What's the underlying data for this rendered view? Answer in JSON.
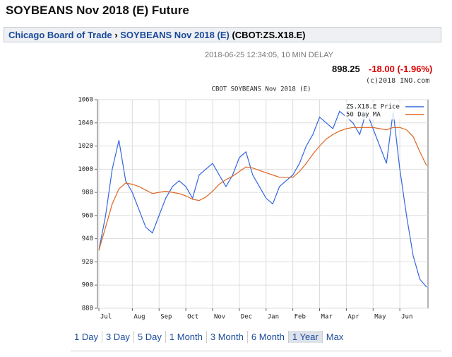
{
  "header": {
    "title": "SOYBEANS Nov 2018 (E) Future"
  },
  "breadcrumb": {
    "exchange": "Chicago Board of Trade",
    "separator": "›",
    "contract": "SOYBEANS Nov 2018 (E)",
    "symbol": "(CBOT:ZS.X18.E)"
  },
  "quote": {
    "timestamp": "2018-06-25 12:34:05, 10 MIN DELAY",
    "last": "898.25",
    "change": "-18.00 (-1.96%)",
    "copyright": "(c)2018 INO.com"
  },
  "chart_data": {
    "type": "line",
    "title": "CBOT SOYBEANS Nov 2018 (E)",
    "x": [
      "Jul",
      "Jul",
      "Jul",
      "Jul",
      "Jul",
      "Aug",
      "Aug",
      "Aug",
      "Aug",
      "Sep",
      "Sep",
      "Sep",
      "Sep",
      "Oct",
      "Oct",
      "Oct",
      "Oct",
      "Nov",
      "Nov",
      "Nov",
      "Nov",
      "Dec",
      "Dec",
      "Dec",
      "Dec",
      "Jan",
      "Jan",
      "Jan",
      "Jan",
      "Feb",
      "Feb",
      "Feb",
      "Feb",
      "Mar",
      "Mar",
      "Mar",
      "Mar",
      "Apr",
      "Apr",
      "Apr",
      "Apr",
      "May",
      "May",
      "May",
      "May",
      "Jun",
      "Jun",
      "Jun",
      "Jun",
      "Jun"
    ],
    "series": [
      {
        "name": "ZS.X18.E Price",
        "color": "#3366dd",
        "values": [
          930,
          960,
          1000,
          1025,
          990,
          980,
          965,
          950,
          945,
          960,
          975,
          985,
          990,
          985,
          975,
          995,
          1000,
          1005,
          995,
          985,
          995,
          1010,
          1015,
          995,
          985,
          975,
          970,
          985,
          990,
          995,
          1005,
          1020,
          1030,
          1045,
          1040,
          1035,
          1050,
          1045,
          1040,
          1030,
          1050,
          1035,
          1020,
          1005,
          1050,
          1000,
          960,
          925,
          905,
          898.25
        ]
      },
      {
        "name": "50 Day MA",
        "color": "#dd6622",
        "values": [
          930,
          950,
          970,
          983,
          988,
          987,
          985,
          982,
          979,
          980,
          981,
          980,
          979,
          977,
          974,
          973,
          976,
          981,
          987,
          991,
          994,
          998,
          1002,
          1001,
          999,
          997,
          995,
          993,
          993,
          993,
          998,
          1005,
          1013,
          1020,
          1026,
          1030,
          1033,
          1035,
          1036,
          1036,
          1036,
          1036,
          1035,
          1034,
          1036,
          1036,
          1034,
          1028,
          1015,
          1003
        ]
      }
    ],
    "ylim": [
      880,
      1060
    ],
    "yticks": [
      880,
      900,
      920,
      940,
      960,
      980,
      1000,
      1020,
      1040,
      1060
    ],
    "grid": true,
    "legend": "top-right"
  },
  "range_buttons": [
    "1 Day",
    "3 Day",
    "5 Day",
    "1 Month",
    "3 Month",
    "6 Month",
    "1 Year",
    "Max"
  ],
  "selected_range": "1 Year"
}
